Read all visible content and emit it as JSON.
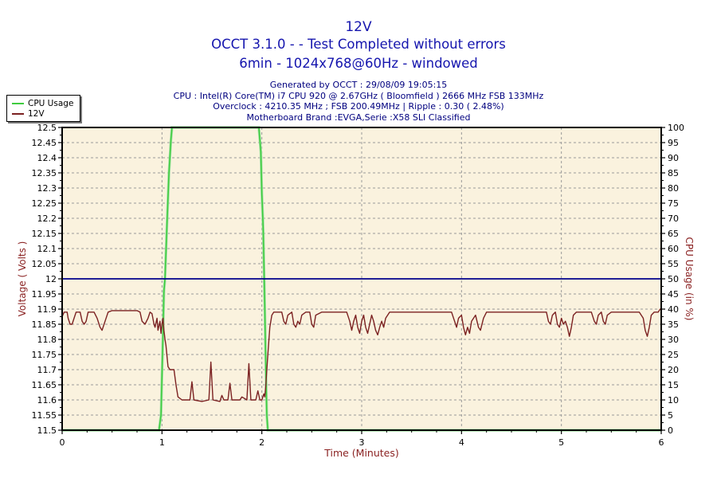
{
  "header": {
    "title": "12V",
    "subtitle1": "OCCT 3.1.0 -  - Test Completed without errors",
    "subtitle2": "6min - 1024x768@60Hz - windowed",
    "info_lines": [
      "Generated by OCCT : 29/08/09 19:05:15",
      "CPU : Intel(R) Core(TM) i7 CPU 920 @ 2.67GHz ( Bloomfield ) 2666 MHz FSB 133MHz",
      "Overclock : 4210.35 MHz ; FSB 200.49MHz | Ripple : 0.30 ( 2.48%)",
      "Motherboard Brand :EVGA,Serie :X58 SLI Classified"
    ]
  },
  "legend": {
    "items": [
      {
        "label": "CPU Usage",
        "color": "#3FCC3F"
      },
      {
        "label": "12V",
        "color": "#7B2121"
      }
    ]
  },
  "colors": {
    "title_blue": "#1515AE",
    "info_navy": "#00007F",
    "axis_title_red": "#8B2323",
    "plot_background": "#FAF2DE",
    "grid": "#999999",
    "nominal_line": "#00008B",
    "cpu_line": "#3FCC3F",
    "voltage_line": "#7B2121"
  },
  "chart_data": {
    "type": "line",
    "title": "12V",
    "xlabel": "Time (Minutes)",
    "ylabel_left": "Voltage ( Volts )",
    "ylabel_right": "CPU Usage (in %)",
    "xlim": [
      0,
      6
    ],
    "ylim_left": [
      11.5,
      12.5
    ],
    "ylim_right": [
      0,
      100
    ],
    "x_tick_step": 1,
    "x_minor_step": 0.25,
    "y_left_tick_step": 0.05,
    "y_right_tick_step": 5,
    "grid": true,
    "legend_position": "top-left",
    "reference_line": {
      "axis": "left",
      "value": 12.0,
      "color": "#00008B"
    },
    "series": [
      {
        "name": "CPU Usage",
        "axis": "right",
        "color": "#3FCC3F",
        "points": [
          [
            0.0,
            0
          ],
          [
            0.97,
            0
          ],
          [
            0.99,
            5
          ],
          [
            1.0,
            18
          ],
          [
            1.01,
            32
          ],
          [
            1.02,
            46
          ],
          [
            1.03,
            50
          ],
          [
            1.05,
            68
          ],
          [
            1.07,
            85
          ],
          [
            1.09,
            96
          ],
          [
            1.1,
            100
          ],
          [
            1.97,
            100
          ],
          [
            1.99,
            92
          ],
          [
            2.0,
            78
          ],
          [
            2.01,
            70
          ],
          [
            2.015,
            65
          ],
          [
            2.03,
            40
          ],
          [
            2.04,
            20
          ],
          [
            2.05,
            5
          ],
          [
            2.06,
            0
          ],
          [
            6.0,
            0
          ]
        ]
      },
      {
        "name": "12V",
        "axis": "left",
        "color": "#7B2121",
        "points": [
          [
            0.0,
            11.875
          ],
          [
            0.02,
            11.89
          ],
          [
            0.05,
            11.89
          ],
          [
            0.06,
            11.87
          ],
          [
            0.08,
            11.85
          ],
          [
            0.1,
            11.85
          ],
          [
            0.12,
            11.87
          ],
          [
            0.14,
            11.89
          ],
          [
            0.18,
            11.89
          ],
          [
            0.2,
            11.86
          ],
          [
            0.22,
            11.85
          ],
          [
            0.24,
            11.86
          ],
          [
            0.26,
            11.89
          ],
          [
            0.32,
            11.89
          ],
          [
            0.35,
            11.87
          ],
          [
            0.38,
            11.84
          ],
          [
            0.4,
            11.83
          ],
          [
            0.43,
            11.86
          ],
          [
            0.46,
            11.89
          ],
          [
            0.5,
            11.895
          ],
          [
            0.75,
            11.895
          ],
          [
            0.78,
            11.89
          ],
          [
            0.8,
            11.86
          ],
          [
            0.83,
            11.85
          ],
          [
            0.86,
            11.87
          ],
          [
            0.88,
            11.89
          ],
          [
            0.9,
            11.885
          ],
          [
            0.92,
            11.85
          ],
          [
            0.93,
            11.84
          ],
          [
            0.95,
            11.87
          ],
          [
            0.96,
            11.83
          ],
          [
            0.98,
            11.86
          ],
          [
            0.99,
            11.82
          ],
          [
            1.0,
            11.85
          ],
          [
            1.01,
            11.87
          ],
          [
            1.02,
            11.83
          ],
          [
            1.03,
            11.8
          ],
          [
            1.04,
            11.78
          ],
          [
            1.06,
            11.71
          ],
          [
            1.08,
            11.7
          ],
          [
            1.12,
            11.7
          ],
          [
            1.14,
            11.65
          ],
          [
            1.16,
            11.61
          ],
          [
            1.2,
            11.6
          ],
          [
            1.28,
            11.6
          ],
          [
            1.3,
            11.66
          ],
          [
            1.32,
            11.6
          ],
          [
            1.4,
            11.595
          ],
          [
            1.47,
            11.6
          ],
          [
            1.49,
            11.725
          ],
          [
            1.51,
            11.6
          ],
          [
            1.58,
            11.595
          ],
          [
            1.6,
            11.615
          ],
          [
            1.62,
            11.6
          ],
          [
            1.66,
            11.6
          ],
          [
            1.68,
            11.655
          ],
          [
            1.7,
            11.6
          ],
          [
            1.78,
            11.6
          ],
          [
            1.8,
            11.61
          ],
          [
            1.85,
            11.6
          ],
          [
            1.87,
            11.72
          ],
          [
            1.89,
            11.6
          ],
          [
            1.94,
            11.6
          ],
          [
            1.96,
            11.63
          ],
          [
            1.98,
            11.6
          ],
          [
            2.0,
            11.6
          ],
          [
            2.02,
            11.62
          ],
          [
            2.03,
            11.61
          ],
          [
            2.04,
            11.65
          ],
          [
            2.06,
            11.75
          ],
          [
            2.08,
            11.84
          ],
          [
            2.1,
            11.88
          ],
          [
            2.12,
            11.89
          ],
          [
            2.2,
            11.89
          ],
          [
            2.22,
            11.86
          ],
          [
            2.24,
            11.85
          ],
          [
            2.26,
            11.88
          ],
          [
            2.3,
            11.89
          ],
          [
            2.32,
            11.85
          ],
          [
            2.34,
            11.84
          ],
          [
            2.36,
            11.86
          ],
          [
            2.38,
            11.85
          ],
          [
            2.4,
            11.88
          ],
          [
            2.44,
            11.89
          ],
          [
            2.48,
            11.89
          ],
          [
            2.5,
            11.85
          ],
          [
            2.52,
            11.84
          ],
          [
            2.54,
            11.88
          ],
          [
            2.6,
            11.89
          ],
          [
            2.85,
            11.89
          ],
          [
            2.88,
            11.86
          ],
          [
            2.9,
            11.83
          ],
          [
            2.92,
            11.86
          ],
          [
            2.94,
            11.88
          ],
          [
            2.96,
            11.84
          ],
          [
            2.98,
            11.82
          ],
          [
            3.0,
            11.86
          ],
          [
            3.02,
            11.88
          ],
          [
            3.04,
            11.84
          ],
          [
            3.06,
            11.82
          ],
          [
            3.08,
            11.85
          ],
          [
            3.1,
            11.88
          ],
          [
            3.12,
            11.86
          ],
          [
            3.14,
            11.83
          ],
          [
            3.16,
            11.815
          ],
          [
            3.18,
            11.84
          ],
          [
            3.2,
            11.86
          ],
          [
            3.22,
            11.84
          ],
          [
            3.24,
            11.87
          ],
          [
            3.28,
            11.89
          ],
          [
            3.6,
            11.89
          ],
          [
            3.9,
            11.89
          ],
          [
            3.93,
            11.86
          ],
          [
            3.95,
            11.84
          ],
          [
            3.97,
            11.87
          ],
          [
            4.0,
            11.88
          ],
          [
            4.02,
            11.84
          ],
          [
            4.04,
            11.815
          ],
          [
            4.06,
            11.84
          ],
          [
            4.08,
            11.82
          ],
          [
            4.1,
            11.86
          ],
          [
            4.14,
            11.88
          ],
          [
            4.17,
            11.84
          ],
          [
            4.19,
            11.83
          ],
          [
            4.22,
            11.87
          ],
          [
            4.25,
            11.89
          ],
          [
            4.6,
            11.89
          ],
          [
            4.85,
            11.89
          ],
          [
            4.87,
            11.86
          ],
          [
            4.89,
            11.85
          ],
          [
            4.91,
            11.88
          ],
          [
            4.94,
            11.89
          ],
          [
            4.96,
            11.85
          ],
          [
            4.98,
            11.84
          ],
          [
            5.0,
            11.87
          ],
          [
            5.02,
            11.85
          ],
          [
            5.04,
            11.86
          ],
          [
            5.06,
            11.84
          ],
          [
            5.08,
            11.81
          ],
          [
            5.1,
            11.84
          ],
          [
            5.12,
            11.88
          ],
          [
            5.15,
            11.89
          ],
          [
            5.3,
            11.89
          ],
          [
            5.33,
            11.86
          ],
          [
            5.35,
            11.85
          ],
          [
            5.37,
            11.88
          ],
          [
            5.4,
            11.89
          ],
          [
            5.42,
            11.86
          ],
          [
            5.44,
            11.85
          ],
          [
            5.46,
            11.88
          ],
          [
            5.5,
            11.89
          ],
          [
            5.78,
            11.89
          ],
          [
            5.82,
            11.87
          ],
          [
            5.84,
            11.83
          ],
          [
            5.86,
            11.81
          ],
          [
            5.88,
            11.84
          ],
          [
            5.9,
            11.88
          ],
          [
            5.93,
            11.89
          ],
          [
            5.97,
            11.89
          ],
          [
            5.99,
            11.9
          ],
          [
            6.0,
            11.9
          ]
        ]
      }
    ]
  }
}
